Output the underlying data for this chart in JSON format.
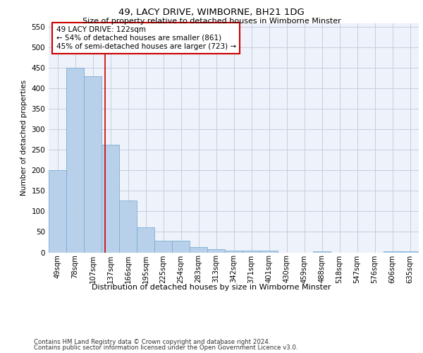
{
  "title": "49, LACY DRIVE, WIMBORNE, BH21 1DG",
  "subtitle": "Size of property relative to detached houses in Wimborne Minster",
  "xlabel": "Distribution of detached houses by size in Wimborne Minster",
  "ylabel": "Number of detached properties",
  "bar_labels": [
    "49sqm",
    "78sqm",
    "107sqm",
    "137sqm",
    "166sqm",
    "195sqm",
    "225sqm",
    "254sqm",
    "283sqm",
    "313sqm",
    "342sqm",
    "371sqm",
    "401sqm",
    "430sqm",
    "459sqm",
    "488sqm",
    "518sqm",
    "547sqm",
    "576sqm",
    "606sqm",
    "635sqm"
  ],
  "bar_values": [
    200,
    450,
    430,
    263,
    127,
    62,
    29,
    28,
    13,
    8,
    5,
    5,
    5,
    0,
    0,
    3,
    0,
    0,
    0,
    3,
    3
  ],
  "bar_color": "#b8d0ea",
  "bar_edge_color": "#7aafd4",
  "ylim": [
    0,
    560
  ],
  "yticks": [
    0,
    50,
    100,
    150,
    200,
    250,
    300,
    350,
    400,
    450,
    500,
    550
  ],
  "property_label": "49 LACY DRIVE: 122sqm",
  "pct_smaller": 54,
  "n_smaller": 861,
  "pct_larger_semi": 45,
  "n_larger_semi": 723,
  "vline_x": 2.7,
  "annotation_box_color": "#ffffff",
  "annotation_box_edge": "#cc0000",
  "vline_color": "#cc0000",
  "footer1": "Contains HM Land Registry data © Crown copyright and database right 2024.",
  "footer2": "Contains public sector information licensed under the Open Government Licence v3.0.",
  "background_color": "#eef2fa",
  "grid_color": "#c5cde0"
}
